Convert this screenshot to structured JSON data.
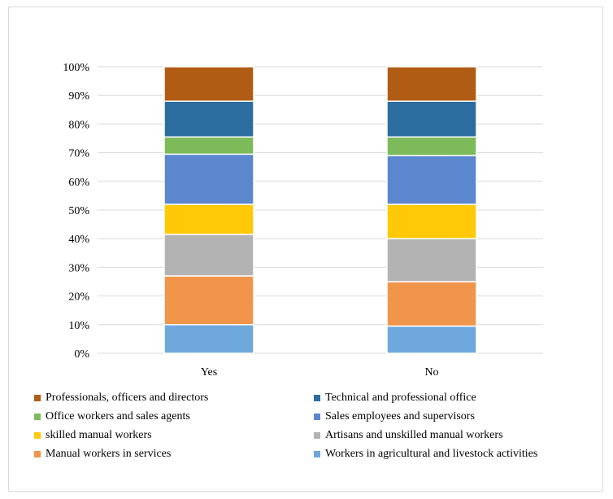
{
  "chart_data": {
    "type": "bar",
    "stacked": true,
    "percent": true,
    "categories": [
      "Yes",
      "No"
    ],
    "ylim": [
      0,
      100
    ],
    "yticks": [
      "0%",
      "10%",
      "20%",
      "30%",
      "40%",
      "50%",
      "60%",
      "70%",
      "80%",
      "90%",
      "100%"
    ],
    "series": [
      {
        "name": "Workers in agricultural and livestock activities",
        "color": "#6fa8dc",
        "values": [
          10,
          9.5
        ]
      },
      {
        "name": "Manual workers in services",
        "color": "#f0954a",
        "values": [
          17,
          15.5
        ]
      },
      {
        "name": "Artisans and unskilled manual workers",
        "color": "#b3b3b3",
        "values": [
          14.5,
          15
        ]
      },
      {
        "name": "skilled manual workers",
        "color": "#ffc907",
        "values": [
          10.5,
          12
        ]
      },
      {
        "name": "Sales employees and supervisors",
        "color": "#5b87cf",
        "values": [
          17.5,
          17
        ]
      },
      {
        "name": "Office workers and sales agents",
        "color": "#7cba5a",
        "values": [
          6,
          6.5
        ]
      },
      {
        "name": "Technical and professional office",
        "color": "#2c6da0",
        "values": [
          12.5,
          12.5
        ]
      },
      {
        "name": "Professionals, officers and directors",
        "color": "#b05c14",
        "values": [
          12,
          12
        ]
      }
    ],
    "legend": [
      "Professionals, officers and directors",
      "Technical and professional office",
      "Office workers and sales agents",
      "Sales employees and supervisors",
      "skilled manual workers",
      "Artisans and unskilled manual workers",
      "Manual workers in services",
      "Workers in agricultural and livestock activities"
    ]
  }
}
